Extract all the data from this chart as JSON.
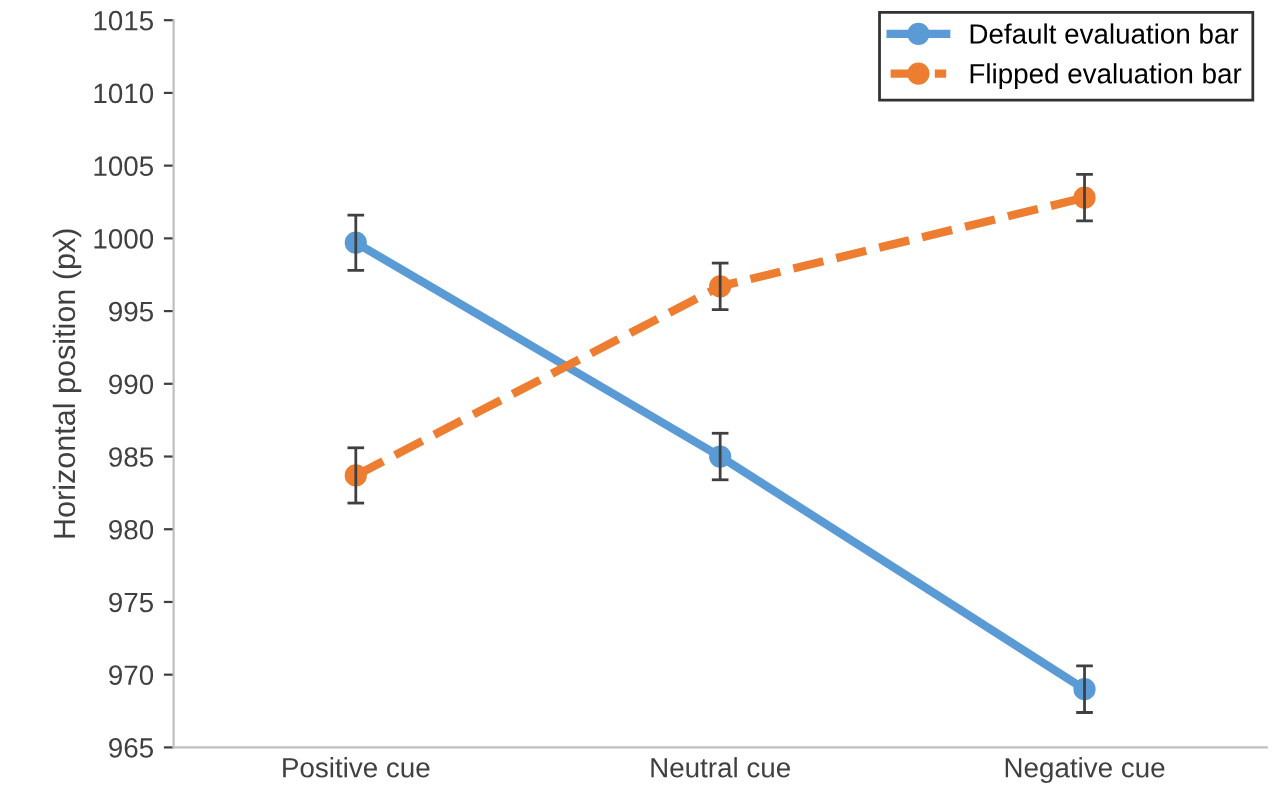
{
  "chart_data": {
    "type": "line",
    "ylabel": "Horizontal position (px)",
    "categories": [
      "Positive cue",
      "Neutral cue",
      "Negative cue"
    ],
    "series": [
      {
        "name": "Default evaluation bar",
        "color": "#5b9bd5",
        "values": [
          999.7,
          985.0,
          969.0
        ],
        "errors": [
          1.9,
          1.6,
          1.6
        ],
        "line_style": "solid"
      },
      {
        "name": "Flipped evaluation bar",
        "color": "#ed7d31",
        "values": [
          983.7,
          996.7,
          1002.8
        ],
        "errors": [
          1.9,
          1.6,
          1.6
        ],
        "line_style": "dashed"
      }
    ],
    "ylim": [
      965,
      1015
    ],
    "yticks": [
      965,
      970,
      975,
      980,
      985,
      990,
      995,
      1000,
      1005,
      1010,
      1015
    ],
    "marker": "circle",
    "legend": "top right",
    "grid": false
  }
}
